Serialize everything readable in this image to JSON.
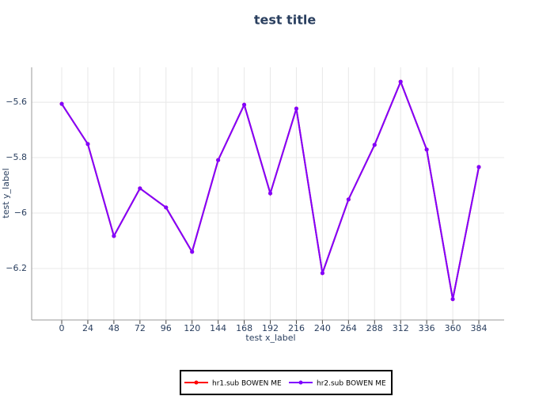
{
  "chart_data": {
    "type": "line",
    "title": "test title",
    "x_label": "test x_label",
    "y_label": "test y_label",
    "x": [
      0,
      24,
      48,
      72,
      96,
      120,
      144,
      168,
      192,
      216,
      240,
      264,
      288,
      312,
      336,
      360,
      384
    ],
    "series": [
      {
        "name": "hr1.sub BOWEN ME",
        "color": "#ff0000",
        "values": [
          -5.606,
          -5.751,
          -6.083,
          -5.911,
          -5.98,
          -6.14,
          -5.809,
          -5.609,
          -5.929,
          -5.623,
          -6.217,
          -5.951,
          -5.754,
          -5.526,
          -5.771,
          -6.311,
          -5.834
        ]
      },
      {
        "name": "hr2.sub BOWEN ME",
        "color": "#8000ff",
        "values": [
          -5.606,
          -5.751,
          -6.083,
          -5.911,
          -5.98,
          -6.14,
          -5.809,
          -5.609,
          -5.929,
          -5.623,
          -6.217,
          -5.951,
          -5.754,
          -5.526,
          -5.771,
          -6.311,
          -5.834
        ]
      }
    ],
    "xlim": [
      -27.7,
      407.3
    ],
    "ylim": [
      -6.386,
      -5.474
    ],
    "xticks": [
      0,
      24,
      48,
      72,
      96,
      120,
      144,
      168,
      192,
      216,
      240,
      264,
      288,
      312,
      336,
      360,
      384
    ],
    "yticks": [
      {
        "value": -5.6,
        "label": "−5.6"
      },
      {
        "value": -5.8,
        "label": "−5.8"
      },
      {
        "value": -6,
        "label": "−6"
      },
      {
        "value": -6.2,
        "label": "−6.2"
      }
    ],
    "grid": true,
    "legend": "bottom"
  }
}
